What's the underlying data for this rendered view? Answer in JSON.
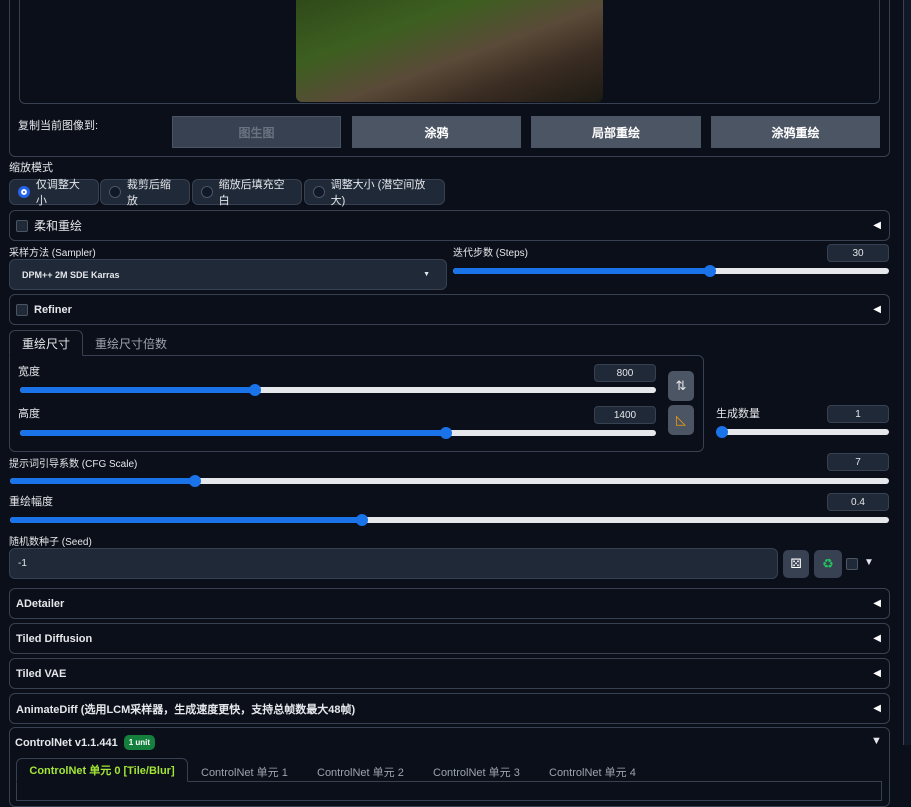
{
  "image_panel": {
    "copy_label": "复制当前图像到:",
    "buttons": [
      "图生图",
      "涂鸦",
      "局部重绘",
      "涂鸦重绘"
    ]
  },
  "resize_mode": {
    "label": "缩放模式",
    "options": [
      "仅调整大小",
      "裁剪后缩放",
      "缩放后填充空白",
      "调整大小 (潜空间放大)"
    ],
    "selected": 0
  },
  "soft_inpaint": {
    "label": "柔和重绘",
    "checked": false
  },
  "sampler": {
    "label": "采样方法 (Sampler)",
    "value": "DPM++ 2M SDE Karras"
  },
  "steps": {
    "label": "迭代步数 (Steps)",
    "value": "30",
    "fraction": 0.59
  },
  "refiner": {
    "label": "Refiner",
    "checked": false
  },
  "size_tabs": [
    "重绘尺寸",
    "重绘尺寸倍数"
  ],
  "width": {
    "label": "宽度",
    "value": "800",
    "fraction": 0.37
  },
  "height": {
    "label": "高度",
    "value": "1400",
    "fraction": 0.67
  },
  "swap_icon": "swap-arrows-icon",
  "ratio_icon": "triangle-ruler-icon",
  "batch_count": {
    "label": "生成数量",
    "value": "1",
    "fraction": 0.0
  },
  "cfg": {
    "label": "提示词引导系数 (CFG Scale)",
    "value": "7",
    "fraction": 0.21
  },
  "denoise": {
    "label": "重绘幅度",
    "value": "0.4",
    "fraction": 0.4
  },
  "seed": {
    "label": "随机数种子 (Seed)",
    "value": "-1",
    "dice_icon": "dice-icon",
    "recycle_icon": "recycle-icon"
  },
  "accordions": [
    "ADetailer",
    "Tiled Diffusion",
    "Tiled VAE",
    "AnimateDiff (选用LCM采样器，生成速度更快，支持总帧数最大48帧)"
  ],
  "controlnet": {
    "title": "ControlNet v1.1.441",
    "badge": "1 unit",
    "tabs": [
      "ControlNet 单元 0 [Tile/Blur]",
      "ControlNet 单元 1",
      "ControlNet 单元 2",
      "ControlNet 单元 3",
      "ControlNet 单元 4"
    ],
    "active_color": "#a3e635"
  },
  "colors": {
    "accent": "#1a73e8",
    "badge": "#15803d"
  }
}
